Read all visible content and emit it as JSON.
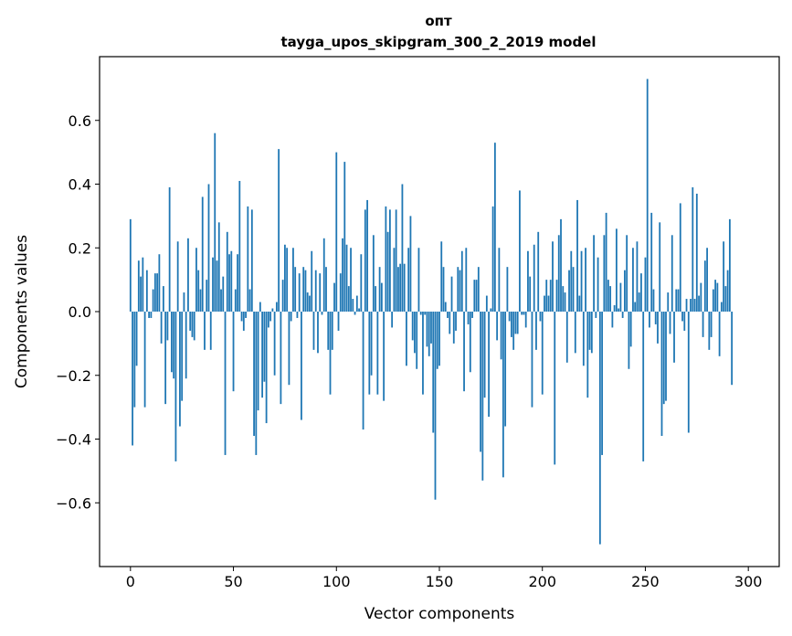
{
  "chart_data": {
    "type": "bar",
    "title": "опт",
    "subtitle": "tayga_upos_skipgram_300_2_2019 model",
    "xlabel": "Vector components",
    "ylabel": "Components values",
    "xlim": [
      -15,
      315
    ],
    "ylim": [
      -0.8,
      0.8
    ],
    "xticks": [
      0,
      50,
      100,
      150,
      200,
      250,
      300
    ],
    "yticks": [
      -0.6,
      -0.4,
      -0.2,
      0.0,
      0.2,
      0.4,
      0.6
    ],
    "ytick_labels": [
      "−0.6",
      "−0.4",
      "−0.2",
      "0.0",
      "0.2",
      "0.4",
      "0.6"
    ],
    "xtick_labels": [
      "0",
      "50",
      "100",
      "150",
      "200",
      "250",
      "300"
    ],
    "bar_color": "#1f77b4",
    "grid": false,
    "values": [
      0.29,
      -0.42,
      -0.3,
      -0.17,
      0.16,
      0.11,
      0.17,
      -0.3,
      0.13,
      -0.02,
      -0.02,
      0.07,
      0.12,
      0.12,
      0.18,
      -0.1,
      0.08,
      -0.29,
      -0.09,
      0.39,
      -0.19,
      -0.21,
      -0.47,
      0.22,
      -0.36,
      -0.28,
      0.06,
      -0.21,
      0.23,
      -0.06,
      -0.08,
      -0.09,
      0.2,
      0.13,
      0.07,
      0.36,
      -0.12,
      0.1,
      0.4,
      -0.12,
      0.17,
      0.56,
      0.16,
      0.28,
      0.07,
      0.11,
      -0.45,
      0.25,
      0.18,
      0.19,
      -0.25,
      0.07,
      0.18,
      0.41,
      -0.03,
      -0.06,
      -0.02,
      0.33,
      0.07,
      0.32,
      -0.39,
      -0.45,
      -0.31,
      0.03,
      -0.27,
      -0.22,
      -0.35,
      -0.05,
      -0.03,
      0.01,
      -0.2,
      0.03,
      0.51,
      -0.29,
      0.1,
      0.21,
      0.2,
      -0.23,
      -0.03,
      0.2,
      0.14,
      -0.02,
      0.12,
      -0.34,
      0.14,
      0.13,
      0.06,
      0.05,
      0.19,
      -0.12,
      0.13,
      -0.13,
      0.12,
      -0.01,
      0.23,
      0.14,
      -0.12,
      -0.26,
      -0.12,
      0.09,
      0.5,
      -0.06,
      0.12,
      0.23,
      0.47,
      0.21,
      0.08,
      0.2,
      0.04,
      -0.01,
      0.05,
      0.01,
      0.18,
      -0.37,
      0.32,
      0.35,
      -0.26,
      -0.2,
      0.24,
      0.08,
      -0.26,
      0.14,
      0.09,
      -0.28,
      0.33,
      0.25,
      0.32,
      -0.05,
      0.2,
      0.32,
      0.14,
      0.15,
      0.4,
      0.15,
      -0.17,
      0.2,
      0.3,
      -0.09,
      -0.13,
      -0.18,
      0.2,
      -0.01,
      -0.26,
      -0.01,
      -0.11,
      -0.14,
      -0.1,
      -0.38,
      -0.59,
      -0.18,
      -0.17,
      0.22,
      0.14,
      0.03,
      -0.02,
      -0.07,
      0.11,
      -0.1,
      -0.06,
      0.14,
      0.13,
      0.19,
      -0.25,
      0.2,
      -0.04,
      -0.19,
      -0.02,
      0.1,
      0.1,
      0.14,
      -0.44,
      -0.53,
      -0.27,
      0.05,
      -0.33,
      0.01,
      0.33,
      0.53,
      -0.09,
      0.2,
      -0.15,
      -0.52,
      -0.36,
      0.14,
      -0.03,
      -0.08,
      -0.12,
      -0.07,
      -0.07,
      0.38,
      -0.01,
      -0.01,
      -0.05,
      0.19,
      0.11,
      -0.3,
      0.21,
      -0.12,
      0.25,
      -0.03,
      -0.26,
      0.05,
      0.1,
      0.05,
      0.1,
      0.22,
      -0.48,
      0.1,
      0.24,
      0.29,
      0.08,
      0.06,
      -0.16,
      0.13,
      0.19,
      0.14,
      -0.13,
      0.35,
      0.05,
      0.19,
      -0.17,
      0.2,
      -0.27,
      -0.12,
      -0.13,
      0.24,
      -0.02,
      0.17,
      -0.73,
      -0.45,
      0.24,
      0.31,
      0.1,
      0.08,
      -0.05,
      0.02,
      0.26,
      0.01,
      0.09,
      -0.02,
      0.13,
      0.24,
      -0.18,
      -0.11,
      0.2,
      0.03,
      0.22,
      0.06,
      0.12,
      -0.47,
      0.17,
      0.73,
      -0.05,
      0.31,
      0.07,
      -0.04,
      -0.1,
      0.28,
      -0.39,
      -0.29,
      -0.28,
      0.06,
      -0.07,
      0.24,
      -0.16,
      0.07,
      0.07,
      0.34,
      -0.03,
      -0.06,
      0.04,
      -0.38,
      0.04,
      0.39,
      0.04,
      0.37,
      0.05,
      0.09,
      -0.08,
      0.16,
      0.2,
      -0.12,
      -0.08,
      0.07,
      0.1,
      0.09,
      -0.14,
      0.03,
      0.22,
      0.08,
      0.13,
      0.29,
      -0.23
    ]
  }
}
